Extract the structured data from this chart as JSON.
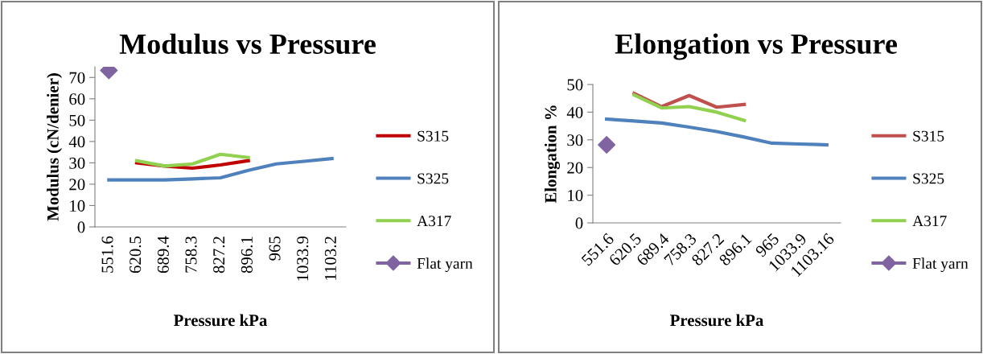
{
  "chart_data": [
    {
      "type": "line",
      "title": "Modulus vs Pressure",
      "xlabel": "Pressure kPa",
      "ylabel": "Modulus (cN/denier)",
      "categories": [
        "551.6",
        "620.5",
        "689.4",
        "758.3",
        "827.2",
        "896.1",
        "965",
        "1033.9",
        "1103.2"
      ],
      "series": [
        {
          "name": "S315",
          "color": "#c00000",
          "values": [
            null,
            30,
            28.5,
            27.5,
            29,
            31,
            null,
            null,
            null
          ]
        },
        {
          "name": "S325",
          "color": "#4f81bd",
          "values": [
            22,
            22,
            22,
            22.5,
            23,
            26.5,
            29.5,
            30.7,
            32
          ]
        },
        {
          "name": "A317",
          "color": "#92d050",
          "values": [
            null,
            31,
            28.5,
            29.5,
            34,
            32.5,
            null,
            null,
            null
          ]
        },
        {
          "name": "Flat yarn",
          "color": "#8064a2",
          "type": "scatter",
          "marker": "diamond",
          "values": [
            73.3,
            null,
            null,
            null,
            null,
            null,
            null,
            null,
            null
          ]
        }
      ],
      "ylim": [
        0,
        75
      ],
      "yticks": [
        0,
        10,
        20,
        30,
        40,
        50,
        60,
        70
      ],
      "grid": false,
      "legend": "right"
    },
    {
      "type": "line",
      "title": "Elongation vs Pressure",
      "xlabel": "Pressure kPa",
      "ylabel": "Elongation %",
      "categories": [
        "551.6",
        "620.5",
        "689.4",
        "758.3",
        "827.2",
        "896.1",
        "965",
        "1033.9",
        "1103.16"
      ],
      "series": [
        {
          "name": "S315",
          "color": "#c0504d",
          "values": [
            null,
            46.8,
            42,
            46,
            41.8,
            42.8,
            null,
            null,
            null
          ]
        },
        {
          "name": "S325",
          "color": "#4f81bd",
          "values": [
            37.5,
            36.8,
            36.1,
            34.6,
            33,
            31,
            28.8,
            28.5,
            28.2
          ]
        },
        {
          "name": "A317",
          "color": "#92d050",
          "values": [
            null,
            46.2,
            41.5,
            42,
            40,
            37,
            null,
            null,
            null
          ]
        },
        {
          "name": "Flat yarn",
          "color": "#8064a2",
          "type": "scatter",
          "marker": "diamond",
          "values": [
            28.2,
            null,
            null,
            null,
            null,
            null,
            null,
            null,
            null
          ]
        }
      ],
      "ylim": [
        0,
        50
      ],
      "yticks": [
        0,
        10,
        20,
        30,
        40,
        50
      ],
      "grid": false,
      "legend": "right"
    }
  ]
}
